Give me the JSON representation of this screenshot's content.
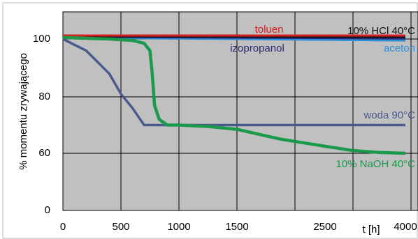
{
  "chart_data": {
    "type": "line",
    "y_label": "% momentu zrywającego",
    "x_label": "t [h]",
    "xticks": [
      0,
      500,
      1000,
      1500,
      2500,
      4000
    ],
    "yticks": [
      0,
      60,
      80,
      100
    ],
    "xlim": [
      0,
      4000
    ],
    "ylim": [
      0,
      110
    ],
    "series": [
      {
        "name": "aceton",
        "color": "#2e8fd8",
        "x": [
          0,
          4000
        ],
        "values": [
          100.5,
          99.5
        ]
      },
      {
        "name": "izopropanol",
        "color": "#262a6e",
        "x": [
          0,
          4000
        ],
        "values": [
          100.8,
          100.2
        ]
      },
      {
        "name": "10% HCl 40°C",
        "color": "#111111",
        "x": [
          0,
          4000
        ],
        "values": [
          101,
          100.8
        ]
      },
      {
        "name": "toluen",
        "color": "#d42020",
        "x": [
          0,
          4000
        ],
        "values": [
          101.2,
          101.2
        ]
      },
      {
        "name": "woda 90°C",
        "color": "#4a5a8c",
        "x": [
          0,
          200,
          400,
          500,
          600,
          700,
          4000
        ],
        "values": [
          100,
          96,
          88,
          81,
          76,
          70,
          70
        ]
      },
      {
        "name": "10% NaOH 40°C",
        "color": "#1a9a4a",
        "x": [
          0,
          400,
          600,
          700,
          750,
          770,
          790,
          830,
          900,
          1000,
          1250,
          1500,
          2000,
          2500,
          3000,
          3500,
          4000
        ],
        "values": [
          100.5,
          100,
          99.5,
          98.5,
          96,
          88,
          77,
          72,
          70,
          70,
          69.5,
          68.5,
          65,
          62.5,
          61,
          60.3,
          60
        ]
      }
    ]
  }
}
